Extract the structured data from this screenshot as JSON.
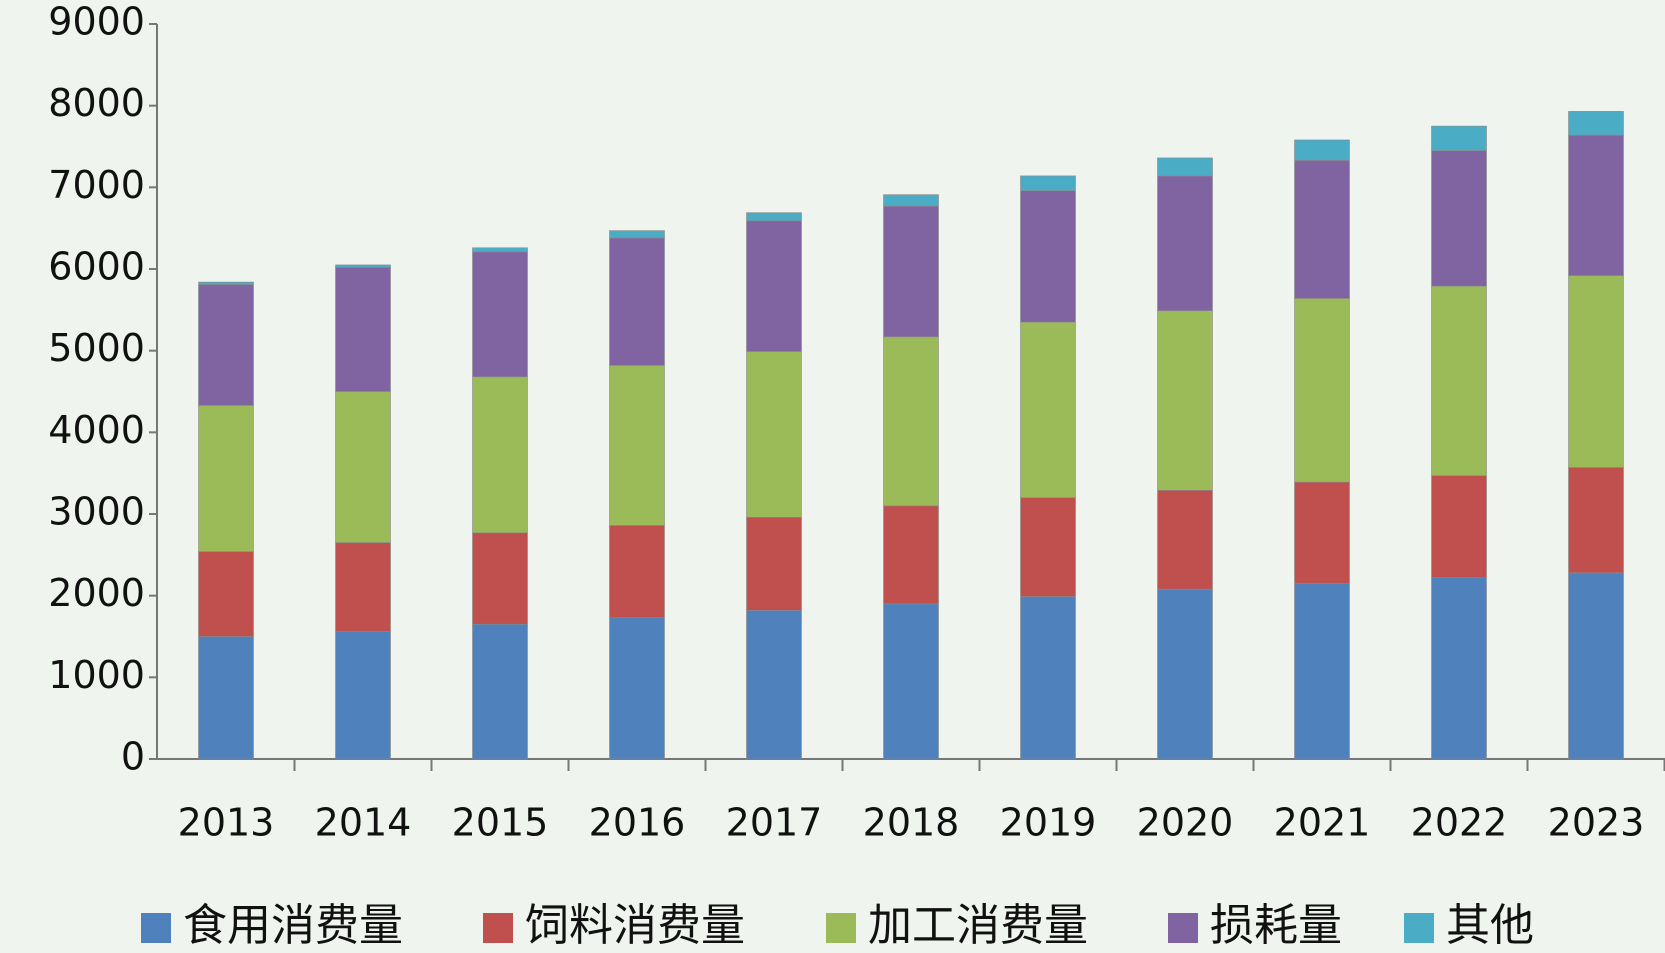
{
  "chart_data": {
    "type": "stacked_bar",
    "categories": [
      "2013",
      "2014",
      "2015",
      "2016",
      "2017",
      "2018",
      "2019",
      "2020",
      "2021",
      "2022",
      "2023"
    ],
    "series": [
      {
        "name": "食用消费量",
        "color": "#4f81bd",
        "values": [
          1500,
          1560,
          1650,
          1730,
          1820,
          1900,
          1990,
          2080,
          2150,
          2220,
          2280
        ]
      },
      {
        "name": "饲料消费量",
        "color": "#c0504d",
        "values": [
          1040,
          1090,
          1120,
          1130,
          1140,
          1200,
          1210,
          1210,
          1240,
          1250,
          1290
        ]
      },
      {
        "name": "加工消费量",
        "color": "#9bbb59",
        "values": [
          1790,
          1850,
          1910,
          1960,
          2030,
          2070,
          2150,
          2200,
          2250,
          2320,
          2350
        ]
      },
      {
        "name": "损耗量",
        "color": "#8064a2",
        "values": [
          1480,
          1520,
          1530,
          1560,
          1600,
          1600,
          1610,
          1650,
          1690,
          1660,
          1720
        ]
      },
      {
        "name": "其他",
        "color": "#4bacc6",
        "values": [
          30,
          30,
          50,
          90,
          100,
          140,
          180,
          220,
          250,
          300,
          290
        ]
      }
    ],
    "ylim": [
      0,
      9000
    ],
    "yticks": [
      0,
      1000,
      2000,
      3000,
      4000,
      5000,
      6000,
      7000,
      8000,
      9000
    ]
  }
}
